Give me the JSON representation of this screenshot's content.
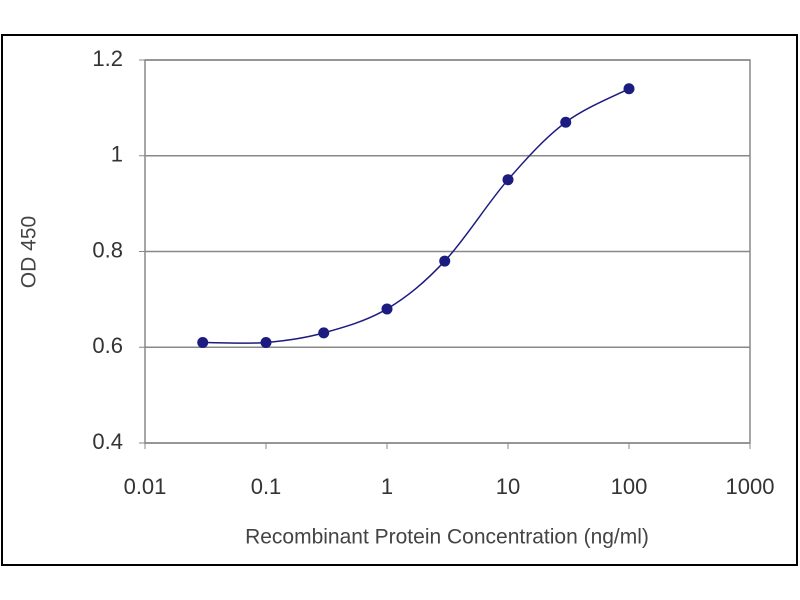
{
  "chart_data": {
    "type": "line",
    "x_label": "Recombinant Protein Concentration (ng/ml)",
    "y_label": "OD 450",
    "x": [
      0.03,
      0.1,
      0.3,
      1,
      3,
      10,
      30,
      100
    ],
    "series": [
      {
        "name": "OD 450",
        "color": "#1c1c80",
        "values": [
          0.61,
          0.61,
          0.63,
          0.68,
          0.78,
          0.95,
          1.07,
          1.14
        ]
      }
    ],
    "xscale": "log",
    "xlim": [
      0.01,
      1000
    ],
    "xticks": [
      0.01,
      0.1,
      1,
      10,
      100,
      1000
    ],
    "ylim": [
      0.4,
      1.2
    ],
    "yticks": [
      0.4,
      0.6,
      0.8,
      1,
      1.2
    ],
    "grid": true
  }
}
